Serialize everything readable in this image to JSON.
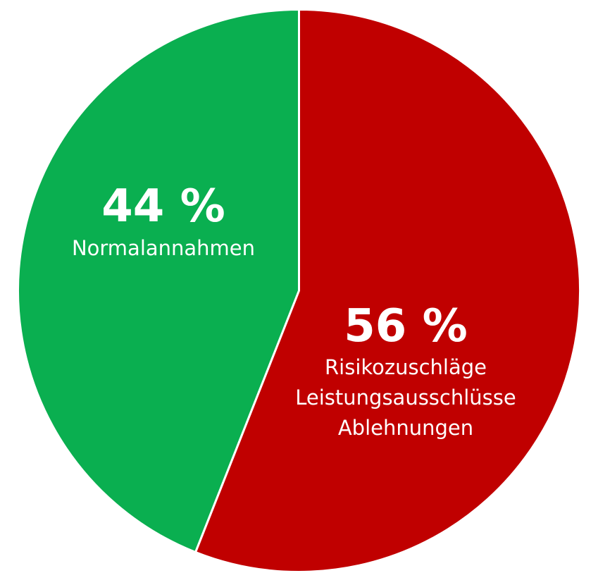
{
  "chart_data": {
    "type": "pie",
    "slices": [
      {
        "value": 44,
        "value_label": "44 %",
        "labels": [
          "Normalannahmen"
        ],
        "color": "#0aaf50"
      },
      {
        "value": 56,
        "value_label": "56 %",
        "labels": [
          "Risikozuschläge",
          "Leistungsausschlüsse",
          "Ablehnungen"
        ],
        "color": "#c00000"
      }
    ],
    "start_angle": "12 o'clock",
    "direction": "counterclockwise",
    "slice_border_color": "#ffffff",
    "legend": "none"
  }
}
